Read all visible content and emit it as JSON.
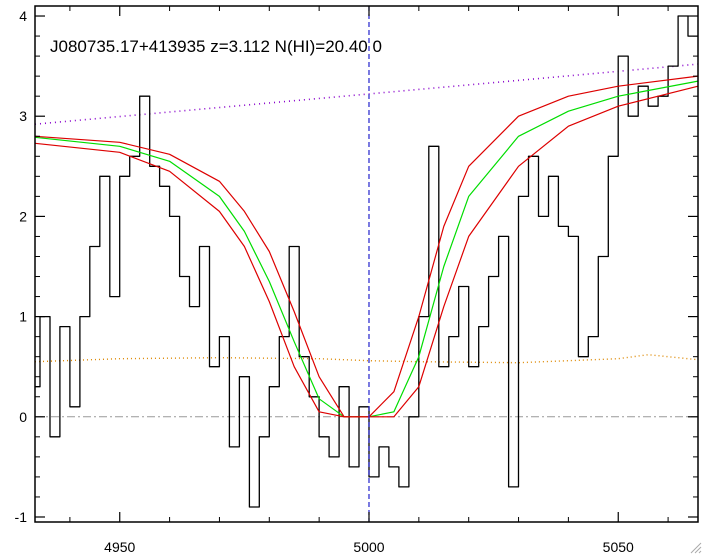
{
  "chart_data": {
    "type": "line",
    "title": "J080735.17+413935 z=3.112 N(HI)=20.40 0",
    "xlabel": "",
    "ylabel": "",
    "xlim": [
      4933,
      5066
    ],
    "ylim": [
      -1.05,
      4.1
    ],
    "x_ticks": [
      4950,
      5000,
      5050
    ],
    "y_ticks": [
      -1,
      0,
      1,
      2,
      3,
      4
    ],
    "x_tick_labels": [
      "4950",
      "5000",
      "5050"
    ],
    "y_tick_labels": [
      "-1",
      "0",
      "1",
      "2",
      "3",
      "4"
    ],
    "grid": false,
    "vline_x": 5000,
    "hline_y": 0,
    "colors": {
      "flux": "#000000",
      "model": "#00dd00",
      "model_bounds": "#dd0000",
      "continuum": "#8800cc",
      "error": "#dd8800",
      "vline": "#2222cc",
      "zero_line": "#999999"
    },
    "series": [
      {
        "role": "flux",
        "step": true,
        "x": [
          4933,
          4935,
          4937,
          4939,
          4941,
          4943,
          4945,
          4947,
          4949,
          4951,
          4953,
          4955,
          4957,
          4959,
          4961,
          4963,
          4965,
          4967,
          4969,
          4971,
          4973,
          4975,
          4977,
          4979,
          4981,
          4983,
          4985,
          4987,
          4989,
          4991,
          4993,
          4995,
          4997,
          4999,
          5001,
          5003,
          5005,
          5007,
          5009,
          5011,
          5013,
          5015,
          5017,
          5019,
          5021,
          5023,
          5025,
          5027,
          5029,
          5031,
          5033,
          5035,
          5037,
          5039,
          5041,
          5043,
          5045,
          5047,
          5049,
          5051,
          5053,
          5055,
          5057,
          5059,
          5061,
          5063,
          5065
        ],
        "y": [
          0.3,
          1.0,
          -0.2,
          0.9,
          0.1,
          1.0,
          1.7,
          2.4,
          1.2,
          2.4,
          2.6,
          3.2,
          2.5,
          2.3,
          2.0,
          1.4,
          1.1,
          1.7,
          0.5,
          0.8,
          -0.3,
          0.4,
          -0.9,
          -0.2,
          0.3,
          0.8,
          1.7,
          0.6,
          0.2,
          -0.2,
          -0.4,
          0.3,
          -0.5,
          0.1,
          -0.6,
          -0.3,
          -0.5,
          -0.7,
          0.0,
          1.0,
          2.7,
          0.5,
          0.8,
          1.3,
          0.5,
          0.9,
          1.4,
          1.8,
          -0.7,
          2.2,
          2.6,
          2.0,
          2.4,
          1.9,
          1.8,
          0.6,
          0.8,
          1.6,
          2.6,
          3.6,
          3.0,
          3.3,
          3.1,
          3.2,
          3.5,
          4.0,
          3.8
        ]
      },
      {
        "role": "model",
        "x": [
          4933,
          4950,
          4960,
          4970,
          4975,
          4980,
          4985,
          4990,
          4995,
          5000,
          5005,
          5010,
          5015,
          5020,
          5030,
          5040,
          5050,
          5066
        ],
        "y": [
          2.79,
          2.7,
          2.55,
          2.2,
          1.85,
          1.35,
          0.75,
          0.18,
          0.0,
          0.0,
          0.05,
          0.6,
          1.5,
          2.2,
          2.8,
          3.05,
          3.2,
          3.35
        ]
      },
      {
        "role": "model_upper",
        "x": [
          4933,
          4950,
          4960,
          4970,
          4975,
          4980,
          4985,
          4990,
          4995,
          5000,
          5005,
          5010,
          5015,
          5020,
          5030,
          5040,
          5050,
          5066
        ],
        "y": [
          2.8,
          2.74,
          2.62,
          2.35,
          2.05,
          1.65,
          1.05,
          0.4,
          0.0,
          0.0,
          0.25,
          1.0,
          1.9,
          2.5,
          3.0,
          3.2,
          3.3,
          3.4
        ]
      },
      {
        "role": "model_lower",
        "x": [
          4933,
          4950,
          4960,
          4970,
          4975,
          4980,
          4985,
          4990,
          4995,
          5000,
          5005,
          5010,
          5015,
          5020,
          5030,
          5040,
          5050,
          5066
        ],
        "y": [
          2.73,
          2.64,
          2.45,
          2.05,
          1.7,
          1.15,
          0.5,
          0.05,
          0.0,
          0.0,
          0.0,
          0.3,
          1.1,
          1.8,
          2.5,
          2.9,
          3.1,
          3.3
        ]
      },
      {
        "role": "continuum",
        "x": [
          4933,
          5066
        ],
        "y": [
          2.92,
          3.52
        ]
      },
      {
        "role": "error",
        "x": [
          4933,
          4950,
          4970,
          4990,
          5000,
          5010,
          5030,
          5050,
          5056,
          5066
        ],
        "y": [
          0.55,
          0.58,
          0.59,
          0.58,
          0.56,
          0.55,
          0.54,
          0.58,
          0.62,
          0.57
        ]
      }
    ]
  }
}
